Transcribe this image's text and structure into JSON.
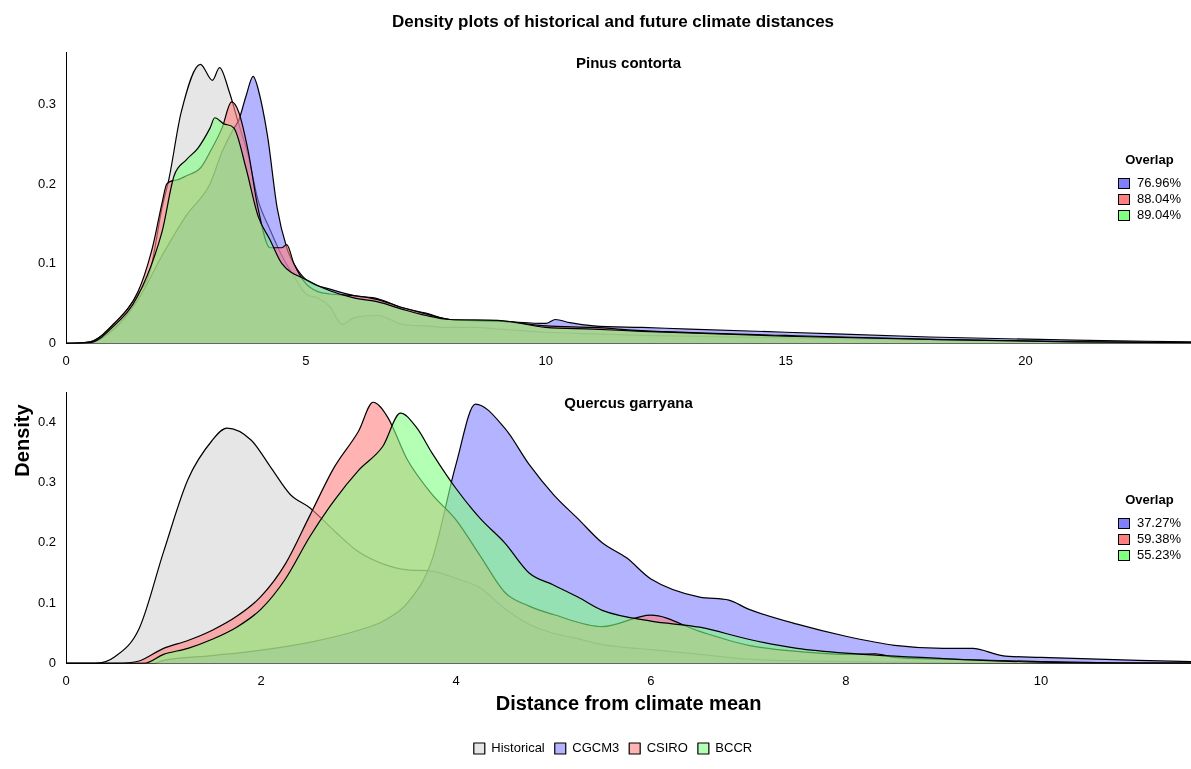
{
  "chart_data": [
    {
      "type": "area",
      "title": "Density plots of historical and future climate distances",
      "subtitle": "Pinus contorta",
      "ylabel": "Density",
      "legend_title": "Overlap",
      "annotations": [
        "76.96%",
        "88.04%",
        "89.04%"
      ],
      "xlim": [
        0,
        23.45
      ],
      "xticks": [
        0,
        5,
        10,
        15,
        20
      ],
      "ylim": [
        0,
        0.365
      ],
      "yticks": [
        0,
        0.1,
        0.2,
        0.3
      ],
      "series": [
        {
          "color": "#e6e6e6",
          "x": [
            0,
            0.5,
            1,
            1.5,
            1.75,
            2,
            2.15,
            2.4,
            2.8,
            3.05,
            3.2,
            3.4,
            3.6,
            3.8,
            4,
            4.25,
            4.5,
            4.75,
            5,
            5.25,
            5.5,
            5.75,
            6,
            6.5,
            7,
            7.5,
            8,
            8.5,
            9,
            10,
            11,
            12,
            15,
            18,
            21,
            23.45
          ],
          "values": [
            0,
            0.002,
            0.024,
            0.062,
            0.09,
            0.17,
            0.208,
            0.29,
            0.35,
            0.33,
            0.346,
            0.316,
            0.275,
            0.235,
            0.18,
            0.143,
            0.11,
            0.084,
            0.062,
            0.057,
            0.046,
            0.024,
            0.032,
            0.035,
            0.024,
            0.022,
            0.02,
            0.02,
            0.018,
            0.014,
            0.012,
            0.01,
            0.007,
            0.004,
            0.002,
            0.001
          ]
        },
        {
          "color": "#8080ff",
          "x": [
            0,
            0.5,
            1,
            1.5,
            2,
            2.5,
            3,
            3.25,
            3.5,
            3.6,
            3.75,
            3.9,
            4,
            4.2,
            4.4,
            4.6,
            4.75,
            5,
            5.5,
            6,
            6.5,
            7,
            7.5,
            8,
            9,
            10,
            10.2,
            10.5,
            11,
            12,
            13,
            15,
            18,
            21,
            23.45
          ],
          "values": [
            0,
            0.001,
            0.018,
            0.055,
            0.11,
            0.16,
            0.2,
            0.24,
            0.27,
            0.28,
            0.31,
            0.335,
            0.32,
            0.26,
            0.17,
            0.12,
            0.1,
            0.08,
            0.068,
            0.06,
            0.056,
            0.045,
            0.038,
            0.03,
            0.028,
            0.025,
            0.03,
            0.026,
            0.022,
            0.02,
            0.018,
            0.014,
            0.008,
            0.004,
            0.002
          ]
        },
        {
          "color": "#ff8080",
          "x": [
            0,
            0.5,
            1,
            1.5,
            1.8,
            2,
            2.1,
            2.3,
            2.5,
            2.8,
            3,
            3.25,
            3.45,
            3.6,
            3.8,
            4,
            4.25,
            4.5,
            4.6,
            4.75,
            5,
            5.25,
            5.5,
            6,
            6.5,
            7,
            7.5,
            8,
            9,
            10,
            11,
            12,
            15,
            18,
            21,
            23.45
          ],
          "values": [
            0,
            0.002,
            0.025,
            0.065,
            0.12,
            0.176,
            0.2,
            0.205,
            0.21,
            0.22,
            0.24,
            0.27,
            0.303,
            0.29,
            0.24,
            0.17,
            0.12,
            0.12,
            0.124,
            0.1,
            0.075,
            0.065,
            0.062,
            0.06,
            0.055,
            0.045,
            0.037,
            0.03,
            0.028,
            0.022,
            0.02,
            0.016,
            0.01,
            0.005,
            0.002,
            0.001
          ]
        },
        {
          "color": "#80ff80",
          "x": [
            0,
            0.5,
            1,
            1.5,
            2,
            2.25,
            2.5,
            2.75,
            3,
            3.1,
            3.3,
            3.5,
            3.75,
            4,
            4.25,
            4.5,
            5,
            5.5,
            6,
            6.5,
            7,
            7.5,
            8,
            9,
            10,
            11,
            12,
            15,
            18,
            21,
            23.45
          ],
          "values": [
            0,
            0.001,
            0.022,
            0.06,
            0.14,
            0.21,
            0.23,
            0.245,
            0.27,
            0.283,
            0.275,
            0.27,
            0.22,
            0.16,
            0.13,
            0.1,
            0.08,
            0.066,
            0.057,
            0.052,
            0.043,
            0.035,
            0.03,
            0.029,
            0.02,
            0.018,
            0.015,
            0.009,
            0.005,
            0.002,
            0.001
          ]
        }
      ]
    },
    {
      "type": "area",
      "subtitle": "Quercus garryana",
      "xlabel": "Distance from climate mean",
      "legend": "bottom",
      "legend_title": "Overlap",
      "annotations": [
        "37.27%",
        "59.38%",
        "55.23%"
      ],
      "xlim": [
        0,
        11.54
      ],
      "xticks": [
        0,
        2,
        4,
        6,
        8,
        10
      ],
      "ylim": [
        0,
        0.45
      ],
      "yticks": [
        0,
        0.1,
        0.2,
        0.3,
        0.4
      ],
      "series": [
        {
          "name": "Historical",
          "color": "#e6e6e6",
          "x": [
            0,
            0.3,
            0.5,
            0.75,
            1,
            1.25,
            1.5,
            1.65,
            1.9,
            2.1,
            2.3,
            2.5,
            2.75,
            3,
            3.25,
            3.5,
            3.75,
            4,
            4.25,
            4.5,
            4.75,
            5,
            5.25,
            5.5,
            5.75,
            6,
            6.5,
            7,
            8,
            9,
            10,
            11.54
          ],
          "values": [
            0,
            0,
            0.011,
            0.058,
            0.185,
            0.305,
            0.37,
            0.39,
            0.37,
            0.325,
            0.28,
            0.258,
            0.22,
            0.185,
            0.165,
            0.155,
            0.153,
            0.141,
            0.125,
            0.091,
            0.065,
            0.05,
            0.041,
            0.031,
            0.026,
            0.023,
            0.015,
            0.007,
            0.003,
            0.001,
            0,
            0
          ]
        },
        {
          "name": "CGCM3",
          "color": "#8080ff",
          "x": [
            0,
            0.9,
            1,
            1.5,
            2,
            2.5,
            3,
            3.25,
            3.5,
            3.75,
            4,
            4.2,
            4.5,
            4.75,
            5,
            5.25,
            5.5,
            5.75,
            6,
            6.5,
            6.8,
            7,
            7.5,
            8,
            8.5,
            9,
            9.3,
            9.6,
            10,
            11,
            11.54
          ],
          "values": [
            0,
            0,
            0.005,
            0.013,
            0.022,
            0.035,
            0.055,
            0.07,
            0.1,
            0.17,
            0.33,
            0.43,
            0.39,
            0.33,
            0.28,
            0.24,
            0.2,
            0.175,
            0.14,
            0.11,
            0.105,
            0.09,
            0.065,
            0.045,
            0.03,
            0.025,
            0.025,
            0.013,
            0.01,
            0.005,
            0.003
          ]
        },
        {
          "name": "CSIRO",
          "color": "#ff8080",
          "x": [
            0,
            0.5,
            0.75,
            1,
            1.25,
            1.5,
            1.75,
            2,
            2.25,
            2.5,
            2.75,
            3,
            3.15,
            3.3,
            3.5,
            3.75,
            4,
            4.25,
            4.5,
            4.75,
            5,
            5.5,
            6,
            6.5,
            7,
            7.5,
            8,
            8.3,
            8.5,
            9,
            10,
            11,
            11.54
          ],
          "values": [
            0,
            0,
            0.004,
            0.025,
            0.038,
            0.055,
            0.078,
            0.111,
            0.165,
            0.245,
            0.325,
            0.385,
            0.433,
            0.408,
            0.338,
            0.281,
            0.238,
            0.178,
            0.118,
            0.095,
            0.081,
            0.061,
            0.08,
            0.053,
            0.03,
            0.02,
            0.015,
            0.016,
            0.01,
            0.007,
            0.003,
            0.001,
            0.001
          ]
        },
        {
          "name": "BCCR",
          "color": "#80ff80",
          "x": [
            0,
            0.8,
            1,
            1.25,
            1.5,
            1.75,
            2,
            2.25,
            2.5,
            2.75,
            3,
            3.25,
            3.43,
            3.6,
            3.75,
            4,
            4.25,
            4.5,
            4.75,
            5,
            5.25,
            5.5,
            6,
            6.5,
            7,
            7.5,
            8,
            9,
            10,
            11,
            11.54
          ],
          "values": [
            0,
            0,
            0.015,
            0.025,
            0.04,
            0.06,
            0.09,
            0.14,
            0.21,
            0.27,
            0.32,
            0.36,
            0.415,
            0.39,
            0.35,
            0.29,
            0.24,
            0.2,
            0.15,
            0.13,
            0.11,
            0.088,
            0.07,
            0.06,
            0.04,
            0.025,
            0.017,
            0.008,
            0.002,
            0,
            0
          ]
        }
      ]
    }
  ]
}
